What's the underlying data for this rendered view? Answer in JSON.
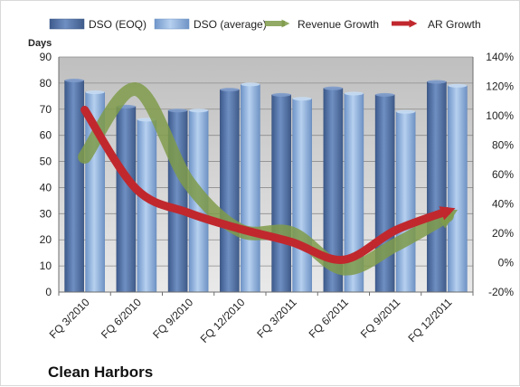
{
  "chart_data": {
    "type": "bar",
    "title": "Clean Harbors",
    "ylabel": "Days",
    "categories": [
      "FQ 3/2010",
      "FQ 6/2010",
      "FQ 9/2010",
      "FQ 12/2010",
      "FQ 3/2011",
      "FQ 6/2011",
      "FQ 9/2011",
      "FQ 12/2011"
    ],
    "ylim": [
      0,
      90
    ],
    "y_ticks": [
      "0",
      "10",
      "20",
      "30",
      "40",
      "50",
      "60",
      "70",
      "80",
      "90"
    ],
    "y2lim": [
      -20,
      140
    ],
    "y2_ticks": [
      "-20%",
      "0%",
      "20%",
      "40%",
      "60%",
      "80%",
      "100%",
      "120%",
      "140%"
    ],
    "grid": true,
    "legend_position": "top",
    "series": [
      {
        "name": "DSO (EOQ)",
        "type": "bar",
        "axis": "left",
        "color": "#4f6fa3",
        "values": [
          81,
          71,
          69.5,
          77.5,
          75.5,
          78,
          75.5,
          80.5
        ]
      },
      {
        "name": "DSO (average)",
        "type": "bar",
        "axis": "left",
        "color": "#8fb3de",
        "values": [
          76.5,
          66,
          69.5,
          79.5,
          74,
          76,
          69,
          79
        ]
      },
      {
        "name": "Revenue Growth",
        "type": "line",
        "axis": "right",
        "unit": "%",
        "color": "#7f9b4a",
        "values": [
          72,
          118,
          55,
          22,
          20,
          -4,
          12,
          32
        ]
      },
      {
        "name": "AR Growth",
        "type": "line",
        "axis": "right",
        "unit": "%",
        "color": "#c0282e",
        "values": [
          104,
          50,
          34,
          23,
          14,
          2,
          22,
          35
        ]
      }
    ]
  }
}
